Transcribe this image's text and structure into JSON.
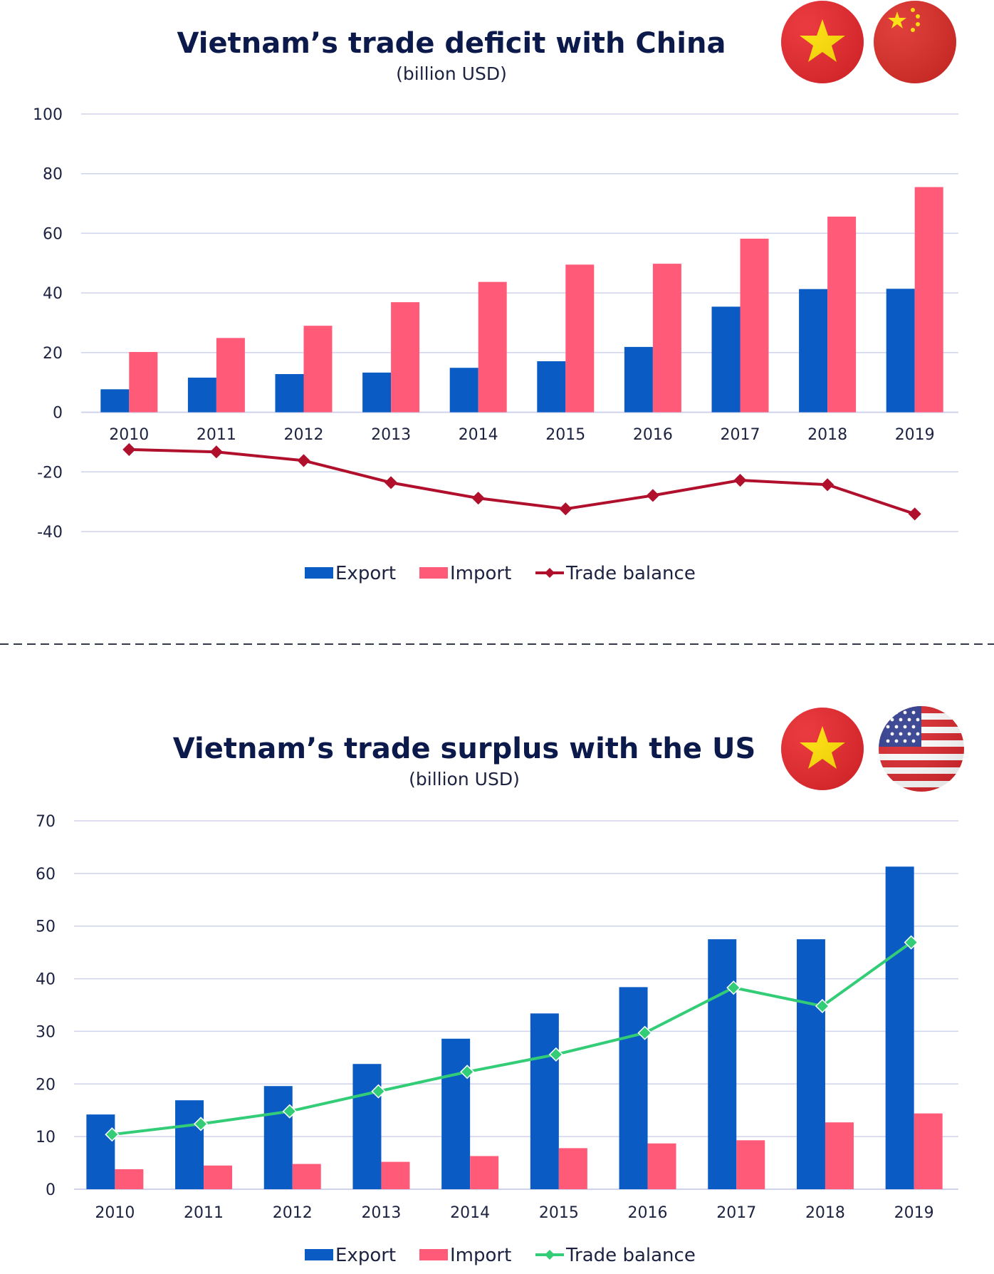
{
  "colors": {
    "export": "#0a5bc4",
    "import": "#ff5a78",
    "china_balance": "#b0102c",
    "us_balance": "#33cc77",
    "grid": "#d0d3ec",
    "axis": "#d0d3ec",
    "title": "#0c1a4b",
    "text": "#1c2240",
    "divider": "#333a4d"
  },
  "charts": [
    {
      "id": "china",
      "flags": [
        "vietnam-flag-icon",
        "china-flag-icon"
      ],
      "chart_data": {
        "type": "bar",
        "title": "Vietnam’s trade deficit with China",
        "subtitle": "(billion USD)",
        "xlabel": "",
        "ylabel": "",
        "categories": [
          "2010",
          "2011",
          "2012",
          "2013",
          "2014",
          "2015",
          "2016",
          "2017",
          "2018",
          "2019"
        ],
        "ylim": [
          -40,
          100
        ],
        "yticks": [
          100,
          80,
          60,
          40,
          20,
          0,
          -20,
          -40
        ],
        "yticks_labels": [
          "100",
          "80",
          "60",
          "40",
          "20",
          "0",
          "-20",
          "-40"
        ],
        "grid": true,
        "legend_position": "bottom-center",
        "series": [
          {
            "name": "Export",
            "type": "bar",
            "values": [
              7.7,
              11.6,
              12.8,
              13.3,
              14.9,
              17.1,
              21.9,
              35.4,
              41.3,
              41.4
            ]
          },
          {
            "name": "Import",
            "type": "bar",
            "values": [
              20.2,
              24.9,
              29.0,
              36.9,
              43.7,
              49.5,
              49.8,
              58.2,
              65.6,
              75.5
            ]
          },
          {
            "name": "Trade balance",
            "type": "line",
            "values": [
              -12.5,
              -13.3,
              -16.2,
              -23.6,
              -28.8,
              -32.4,
              -27.9,
              -22.8,
              -24.3,
              -34.1
            ]
          }
        ]
      }
    },
    {
      "id": "us",
      "flags": [
        "vietnam-flag-icon",
        "us-flag-icon"
      ],
      "chart_data": {
        "type": "bar",
        "title": "Vietnam’s trade surplus with the US",
        "subtitle": "(billion USD)",
        "xlabel": "",
        "ylabel": "",
        "categories": [
          "2010",
          "2011",
          "2012",
          "2013",
          "2014",
          "2015",
          "2016",
          "2017",
          "2018",
          "2019"
        ],
        "ylim": [
          0,
          70
        ],
        "yticks": [
          70,
          60,
          50,
          40,
          30,
          20,
          10,
          0
        ],
        "yticks_labels": [
          "70",
          "60",
          "50",
          "40",
          "30",
          "20",
          "10",
          "0"
        ],
        "grid": true,
        "legend_position": "bottom-center",
        "series": [
          {
            "name": "Export",
            "type": "bar",
            "values": [
              14.2,
              16.9,
              19.6,
              23.8,
              28.6,
              33.4,
              38.4,
              47.5,
              47.5,
              61.3
            ]
          },
          {
            "name": "Import",
            "type": "bar",
            "values": [
              3.8,
              4.5,
              4.8,
              5.2,
              6.3,
              7.8,
              8.7,
              9.3,
              12.7,
              14.4
            ]
          },
          {
            "name": "Trade balance",
            "type": "line",
            "values": [
              10.4,
              12.4,
              14.8,
              18.6,
              22.3,
              25.6,
              29.7,
              38.3,
              34.8,
              46.9
            ]
          }
        ]
      }
    }
  ]
}
